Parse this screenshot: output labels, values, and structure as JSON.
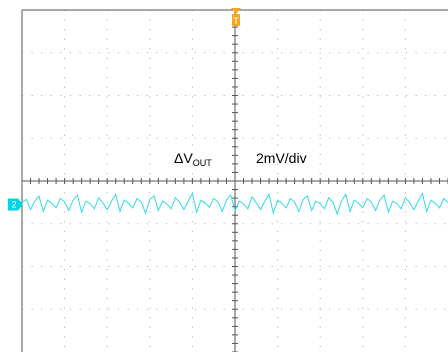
{
  "chart_data": {
    "type": "line",
    "title": "",
    "xlabel": "",
    "ylabel": "",
    "grid": true,
    "divisions": {
      "x": 10,
      "y": 8
    },
    "annotations": {
      "delta_symbol": "Δ",
      "signal_main": "V",
      "signal_sub": "OUT",
      "scale": "2mV/div"
    },
    "channel_marker": {
      "label": "2",
      "color": "#00d5e3",
      "level_div": 0.55
    },
    "trigger_marker": {
      "label": "T",
      "color": "#f5a623"
    },
    "colors": {
      "grid": "#aaaaaa",
      "axis": "#555555",
      "trace": "#33dbe6"
    },
    "series": [
      {
        "units": "divisions from channel reference",
        "samples_per_div": 10,
        "values": [
          0.05,
          0.12,
          -0.12,
          0.08,
          0.2,
          -0.16,
          0.1,
          0.03,
          -0.08,
          0.14,
          0.06,
          -0.14,
          0.1,
          0.22,
          -0.18,
          0.08,
          0.02,
          -0.1,
          0.16,
          0.04,
          -0.12,
          0.08,
          0.24,
          -0.16,
          0.1,
          0.03,
          -0.08,
          0.14,
          0.06,
          -0.2,
          0.12,
          0.2,
          -0.14,
          0.08,
          0.02,
          -0.1,
          0.16,
          0.05,
          -0.12,
          0.08,
          0.26,
          -0.18,
          0.1,
          0.03,
          -0.06,
          0.14,
          0.06,
          -0.16,
          0.1,
          0.22,
          -0.14,
          0.08,
          0.02,
          -0.1,
          0.18,
          0.04,
          -0.12,
          0.08,
          0.24,
          -0.2,
          0.1,
          0.03,
          -0.08,
          0.14,
          0.06,
          -0.16,
          0.12,
          0.2,
          -0.14,
          0.08,
          0.02,
          -0.1,
          0.16,
          0.05,
          -0.22,
          0.08,
          0.24,
          -0.16,
          0.1,
          0.03,
          -0.08,
          0.14,
          0.06,
          -0.14,
          0.1,
          0.22,
          -0.18,
          0.08,
          0.02,
          -0.1,
          0.16,
          0.04,
          -0.12,
          0.08,
          0.26,
          -0.16,
          0.1,
          0.03,
          -0.08,
          0.14,
          0.05
        ]
      }
    ]
  }
}
